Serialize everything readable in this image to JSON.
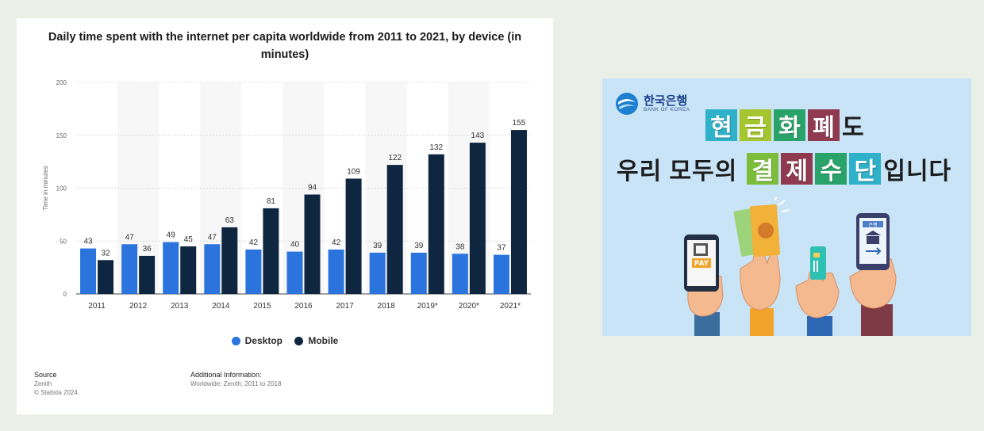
{
  "chart_data": {
    "type": "bar",
    "title_lines": [
      "Daily time spent with the internet per capita worldwide from 2011 to 2021, by device (in",
      "minutes)"
    ],
    "ylabel": "Time in minutes",
    "ylim": [
      0,
      200
    ],
    "yticks": [
      0,
      50,
      100,
      150,
      200
    ],
    "categories": [
      "2011",
      "2012",
      "2013",
      "2014",
      "2015",
      "2016",
      "2017",
      "2018",
      "2019*",
      "2020*",
      "2021*"
    ],
    "series": [
      {
        "name": "Desktop",
        "color": "#2b74de",
        "values": [
          43,
          47,
          49,
          47,
          42,
          40,
          42,
          39,
          39,
          38,
          37
        ]
      },
      {
        "name": "Mobile",
        "color": "#0f2640",
        "values": [
          32,
          36,
          45,
          63,
          81,
          94,
          109,
          122,
          132,
          143,
          155
        ]
      }
    ],
    "legend_position": "bottom-center",
    "grid": true
  },
  "footer": {
    "source_label": "Source",
    "source_value": "Zenith",
    "copyright": "© Statista 2024",
    "additional_label": "Additional Information:",
    "additional_value": "Worldwide; Zenith; 2011 to 2018"
  },
  "ad": {
    "org_name_ko": "한국은행",
    "org_name_en": "BANK OF KOREA",
    "line1_tiles": [
      {
        "char": "현",
        "color": "#2fb1c9"
      },
      {
        "char": "금",
        "color": "#a6c62f"
      },
      {
        "char": "화",
        "color": "#2aa36b"
      },
      {
        "char": "폐",
        "color": "#8f3a4f"
      }
    ],
    "line1_tail": "도",
    "line2_head": "우리 모두의",
    "line2_tiles": [
      {
        "char": "결",
        "color": "#7cbe3c"
      },
      {
        "char": "제",
        "color": "#8f3a4f"
      },
      {
        "char": "수",
        "color": "#2aa36b"
      },
      {
        "char": "단",
        "color": "#2fb1c9"
      }
    ],
    "line2_tail": "입니다",
    "pay_label": "PAY",
    "bank_label": "은행",
    "colors": {
      "background": "#c9e4f6",
      "sleeve1": "#3b6e9f",
      "sleeve2": "#f2a42a",
      "sleeve3": "#2e68b4",
      "sleeve4": "#7f3b45"
    }
  }
}
